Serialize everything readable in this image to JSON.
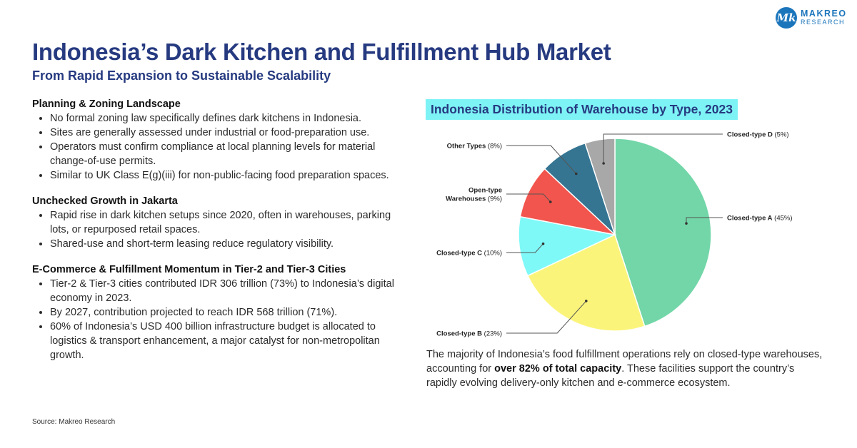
{
  "logo": {
    "mark": "Mk",
    "name": "MAKREO",
    "sub": "RESEARCH"
  },
  "header": {
    "title": "Indonesia’s Dark Kitchen and Fulfillment Hub Market",
    "subtitle": "From Rapid Expansion to Sustainable Scalability"
  },
  "sections": [
    {
      "heading": "Planning & Zoning Landscape",
      "bullets": [
        "No formal zoning law specifically defines dark kitchens in Indonesia.",
        "Sites are generally assessed under industrial or food-preparation use.",
        "Operators must confirm compliance at local planning levels for material change-of-use permits.",
        "Similar to UK Class E(g)(iii) for non-public-facing food preparation spaces."
      ]
    },
    {
      "heading": "Unchecked Growth in Jakarta",
      "bullets": [
        "Rapid rise in dark kitchen setups since 2020, often in warehouses, parking lots, or repurposed retail spaces.",
        "Shared-use and short-term leasing reduce regulatory visibility."
      ]
    },
    {
      "heading": "E-Commerce & Fulfillment Momentum in Tier-2 and Tier-3 Cities",
      "bullets": [
        "Tier-2 & Tier-3 cities contributed IDR 306 trillion (73%) to Indonesia’s digital economy in 2023.",
        "By 2027, contribution projected to reach IDR 568 trillion (71%).",
        "60% of Indonesia’s USD 400 billion infrastructure budget is allocated to logistics & transport enhancement, a major catalyst for non-metropolitan growth."
      ]
    }
  ],
  "source": "Source: Makreo Research",
  "chart_data": {
    "type": "pie",
    "title": "Indonesia Distribution of Warehouse by Type, 2023",
    "slices": [
      {
        "name": "Closed-type A",
        "value": 45,
        "label": "(45%)",
        "color": "#72d6a8"
      },
      {
        "name": "Closed-type B",
        "value": 23,
        "label": "(23%)",
        "color": "#fbf47a"
      },
      {
        "name": "Closed-type C",
        "value": 10,
        "label": "(10%)",
        "color": "#7ef9f7"
      },
      {
        "name": "Open-type Warehouses",
        "value": 9,
        "label": "(9%)",
        "color": "#f2554d"
      },
      {
        "name": "Other Types",
        "value": 8,
        "label": "(8%)",
        "color": "#357592"
      },
      {
        "name": "Closed-type D",
        "value": 5,
        "label": "(5%)",
        "color": "#a8a8a8"
      }
    ]
  },
  "description": {
    "before": "The majority of Indonesia’s food fulfillment operations rely on closed-type warehouses, accounting for ",
    "bold": "over 82% of total capacity",
    "after": ". These facilities support the country’s rapidly evolving delivery-only kitchen and e-commerce ecosystem."
  }
}
